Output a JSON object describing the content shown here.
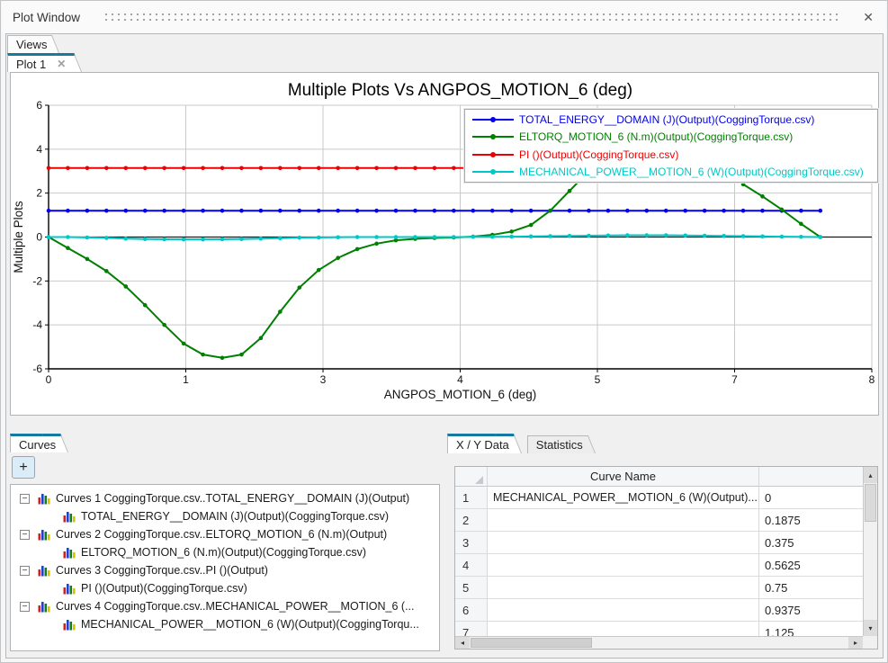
{
  "window": {
    "title": "Plot Window"
  },
  "icons": {
    "window_close": "✕",
    "tab_close": "✕",
    "tree_collapse": "−",
    "scroll_up": "▴",
    "scroll_down": "▾",
    "scroll_left": "◂",
    "scroll_right": "▸"
  },
  "tabs": {
    "views": "Views",
    "plot": "Plot 1"
  },
  "colors": {
    "accent_teal": "#1679a0",
    "grid": "#c9c9c9",
    "axis": "#000000",
    "zero_line": "#1a1a1a",
    "series_blue": "#0000ee",
    "series_green": "#008000",
    "series_red": "#ee0000",
    "series_cyan": "#00c8c8"
  },
  "chart_data": {
    "type": "line",
    "title": "Multiple Plots Vs ANGPOS_MOTION_6 (deg)",
    "xlabel": "ANGPOS_MOTION_6 (deg)",
    "ylabel": "Multiple Plots",
    "xlim": [
      0,
      8
    ],
    "ylim": [
      -6,
      6
    ],
    "xtick_labels": [
      "0",
      "1",
      "3",
      "4",
      "5",
      "7",
      "8"
    ],
    "ytick_labels": [
      "6",
      "4",
      "2",
      "0",
      "-2",
      "-4",
      "-6"
    ],
    "grid": true,
    "legend_position": "top-right",
    "x_start": 0,
    "x_step": 0.1875,
    "series": [
      {
        "name": "TOTAL_ENERGY__DOMAIN (J)(Output)(CoggingTorque.csv)",
        "color": "#0000ee",
        "constant": 1.2,
        "points": 41
      },
      {
        "name": "ELTORQ_MOTION_6 (N.m)(Output)(CoggingTorque.csv)",
        "color": "#008000",
        "values": [
          0,
          -0.5,
          -1,
          -1.55,
          -2.25,
          -3.1,
          -4,
          -4.85,
          -5.35,
          -5.5,
          -5.35,
          -4.6,
          -3.4,
          -2.3,
          -1.5,
          -0.95,
          -0.55,
          -0.3,
          -0.15,
          -0.08,
          -0.04,
          -0.02,
          0.02,
          0.1,
          0.25,
          0.55,
          1.2,
          2.1,
          3,
          3.9,
          4.7,
          5.25,
          5.5,
          5.45,
          5,
          4,
          2.4,
          1.85,
          1.25,
          0.6,
          0
        ]
      },
      {
        "name": "PI ()(Output)(CoggingTorque.csv)",
        "color": "#ee0000",
        "constant": 3.1416,
        "points": 41
      },
      {
        "name": "MECHANICAL_POWER__MOTION_6 (W)(Output)(CoggingTorque.csv)",
        "color": "#00c8c8",
        "values": [
          0,
          0,
          -0.02,
          -0.04,
          -0.07,
          -0.09,
          -0.1,
          -0.11,
          -0.11,
          -0.1,
          -0.09,
          -0.07,
          -0.05,
          -0.03,
          -0.02,
          -0.01,
          0,
          0,
          0,
          0,
          0,
          0,
          0.01,
          0.01,
          0.02,
          0.03,
          0.04,
          0.05,
          0.06,
          0.07,
          0.08,
          0.08,
          0.08,
          0.07,
          0.06,
          0.05,
          0.04,
          0.03,
          0.02,
          0.01,
          0
        ]
      }
    ]
  },
  "curves_panel": {
    "tab": "Curves",
    "add_button": "+",
    "groups": [
      {
        "label": "Curves 1 CoggingTorque.csv..TOTAL_ENERGY__DOMAIN (J)(Output)",
        "child": "TOTAL_ENERGY__DOMAIN (J)(Output)(CoggingTorque.csv)"
      },
      {
        "label": "Curves 2 CoggingTorque.csv..ELTORQ_MOTION_6 (N.m)(Output)",
        "child": "ELTORQ_MOTION_6 (N.m)(Output)(CoggingTorque.csv)"
      },
      {
        "label": "Curves 3 CoggingTorque.csv..PI ()(Output)",
        "child": "PI ()(Output)(CoggingTorque.csv)"
      },
      {
        "label": "Curves 4 CoggingTorque.csv..MECHANICAL_POWER__MOTION_6 (...",
        "child": "MECHANICAL_POWER__MOTION_6 (W)(Output)(CoggingTorqu..."
      }
    ]
  },
  "data_panel": {
    "tabs": {
      "xy": "X / Y Data",
      "statistics": "Statistics"
    },
    "active_tab": "X / Y Data",
    "table": {
      "columns": [
        "",
        "Curve Name",
        ""
      ],
      "rows": [
        {
          "num": "1",
          "name": "MECHANICAL_POWER__MOTION_6 (W)(Output)...",
          "value": "0"
        },
        {
          "num": "2",
          "name": "",
          "value": "0.1875"
        },
        {
          "num": "3",
          "name": "",
          "value": "0.375"
        },
        {
          "num": "4",
          "name": "",
          "value": "0.5625"
        },
        {
          "num": "5",
          "name": "",
          "value": "0.75"
        },
        {
          "num": "6",
          "name": "",
          "value": "0.9375"
        },
        {
          "num": "7",
          "name": "",
          "value": "1.125"
        }
      ]
    }
  }
}
